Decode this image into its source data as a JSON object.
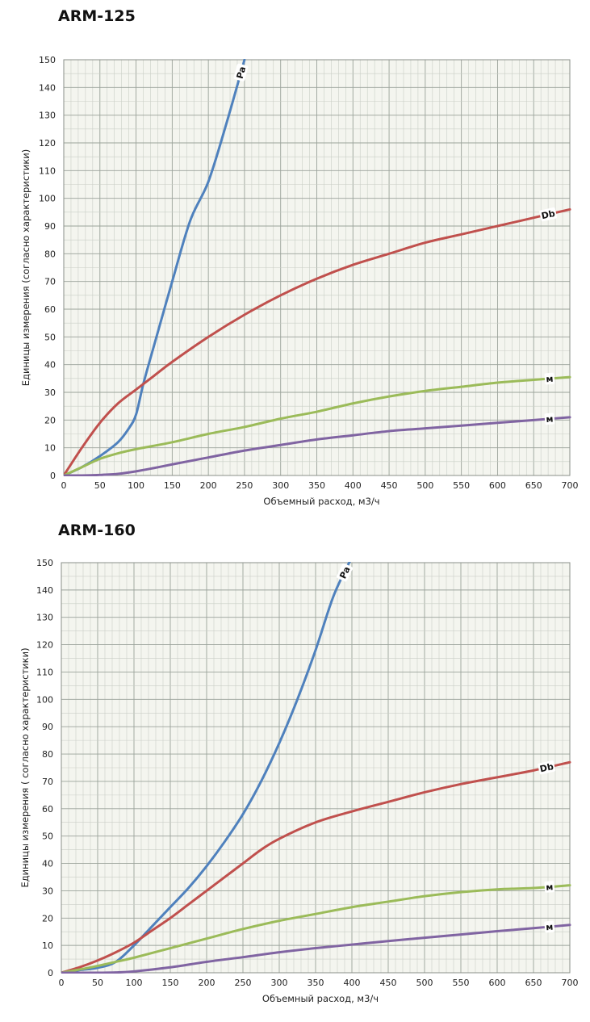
{
  "chart_data": [
    {
      "type": "line",
      "title": "ARM-125",
      "xlabel": "Объемный расход, м3/ч",
      "ylabel": "Единицы измерения (согласно характеристики)",
      "xlim": [
        0,
        700
      ],
      "ylim": [
        0,
        150
      ],
      "xticks": [
        "0",
        "50",
        "100",
        "150",
        "200",
        "250",
        "300",
        "350",
        "400",
        "450",
        "500",
        "550",
        "600",
        "650",
        "700"
      ],
      "yticks": [
        "0",
        "10",
        "20",
        "30",
        "40",
        "50",
        "60",
        "70",
        "80",
        "90",
        "100",
        "110",
        "120",
        "130",
        "140",
        "150"
      ],
      "grid": true,
      "series": [
        {
          "name": "Pa",
          "color": "#4f81bd",
          "x": [
            0,
            25,
            50,
            75,
            90,
            100,
            110,
            125,
            150,
            175,
            200,
            225,
            250
          ],
          "y": [
            0,
            3,
            7,
            12,
            17,
            22,
            33,
            47,
            70,
            92,
            106,
            127,
            150
          ]
        },
        {
          "name": "Db",
          "color": "#c0504d",
          "x": [
            0,
            25,
            50,
            75,
            100,
            125,
            150,
            200,
            250,
            300,
            350,
            400,
            450,
            500,
            550,
            600,
            650,
            700
          ],
          "y": [
            0,
            10,
            19,
            26,
            31,
            36,
            41,
            50,
            58,
            65,
            71,
            76,
            80,
            84,
            87,
            90,
            93,
            96
          ]
        },
        {
          "name": "м",
          "color": "#9bbb59",
          "x": [
            0,
            25,
            50,
            75,
            100,
            150,
            200,
            250,
            300,
            350,
            400,
            450,
            500,
            550,
            600,
            650,
            700
          ],
          "y": [
            0,
            3,
            6,
            8,
            9.5,
            12,
            15,
            17.5,
            20.5,
            23,
            26,
            28.5,
            30.5,
            32,
            33.5,
            34.5,
            35.5
          ]
        },
        {
          "name": "м",
          "color": "#8064a2",
          "x": [
            0,
            25,
            50,
            75,
            100,
            125,
            150,
            200,
            250,
            300,
            350,
            400,
            450,
            500,
            550,
            600,
            650,
            700
          ],
          "y": [
            0,
            0,
            0.2,
            0.6,
            1.5,
            2.7,
            4,
            6.5,
            9,
            11,
            13,
            14.5,
            16,
            17,
            18,
            19,
            20,
            21
          ]
        }
      ]
    },
    {
      "type": "line",
      "title": "ARM-160",
      "xlabel": "Объемный расход, м3/ч",
      "ylabel": "Единицы измерения ( согласно характеристики)",
      "xlim": [
        0,
        700
      ],
      "ylim": [
        0,
        150
      ],
      "xticks": [
        "0",
        "50",
        "100",
        "150",
        "200",
        "250",
        "300",
        "350",
        "400",
        "450",
        "500",
        "550",
        "600",
        "650",
        "700"
      ],
      "yticks": [
        "0",
        "10",
        "20",
        "30",
        "40",
        "50",
        "60",
        "70",
        "80",
        "90",
        "100",
        "110",
        "120",
        "130",
        "140",
        "150"
      ],
      "grid": true,
      "series": [
        {
          "name": "Pa",
          "color": "#4f81bd",
          "x": [
            0,
            25,
            50,
            75,
            100,
            125,
            150,
            175,
            200,
            225,
            250,
            275,
            300,
            325,
            350,
            375,
            400
          ],
          "y": [
            0,
            1,
            1.8,
            4,
            10,
            17,
            24,
            31,
            39,
            48,
            58,
            70,
            84,
            100,
            118,
            138,
            152
          ]
        },
        {
          "name": "Db",
          "color": "#c0504d",
          "x": [
            0,
            25,
            50,
            75,
            100,
            125,
            150,
            175,
            200,
            225,
            250,
            275,
            300,
            350,
            400,
            450,
            500,
            550,
            600,
            650,
            700
          ],
          "y": [
            0,
            2,
            4.5,
            7.5,
            11,
            15.5,
            20,
            25,
            30,
            35,
            40,
            45,
            49,
            55,
            59,
            62.5,
            66,
            69,
            71.5,
            74,
            77
          ]
        },
        {
          "name": "м",
          "color": "#9bbb59",
          "x": [
            0,
            25,
            50,
            75,
            100,
            150,
            200,
            250,
            300,
            350,
            400,
            450,
            500,
            550,
            600,
            650,
            700
          ],
          "y": [
            0,
            1.2,
            2.5,
            4,
            5.5,
            9,
            12.5,
            16,
            19,
            21.5,
            24,
            26,
            28,
            29.5,
            30.5,
            31,
            32
          ]
        },
        {
          "name": "м",
          "color": "#8064a2",
          "x": [
            0,
            50,
            75,
            100,
            150,
            200,
            250,
            300,
            350,
            400,
            450,
            500,
            550,
            600,
            650,
            700
          ],
          "y": [
            0,
            0,
            0.1,
            0.5,
            2,
            4,
            5.7,
            7.5,
            9,
            10.3,
            11.6,
            12.8,
            14,
            15.2,
            16.3,
            17.5
          ]
        }
      ]
    }
  ]
}
